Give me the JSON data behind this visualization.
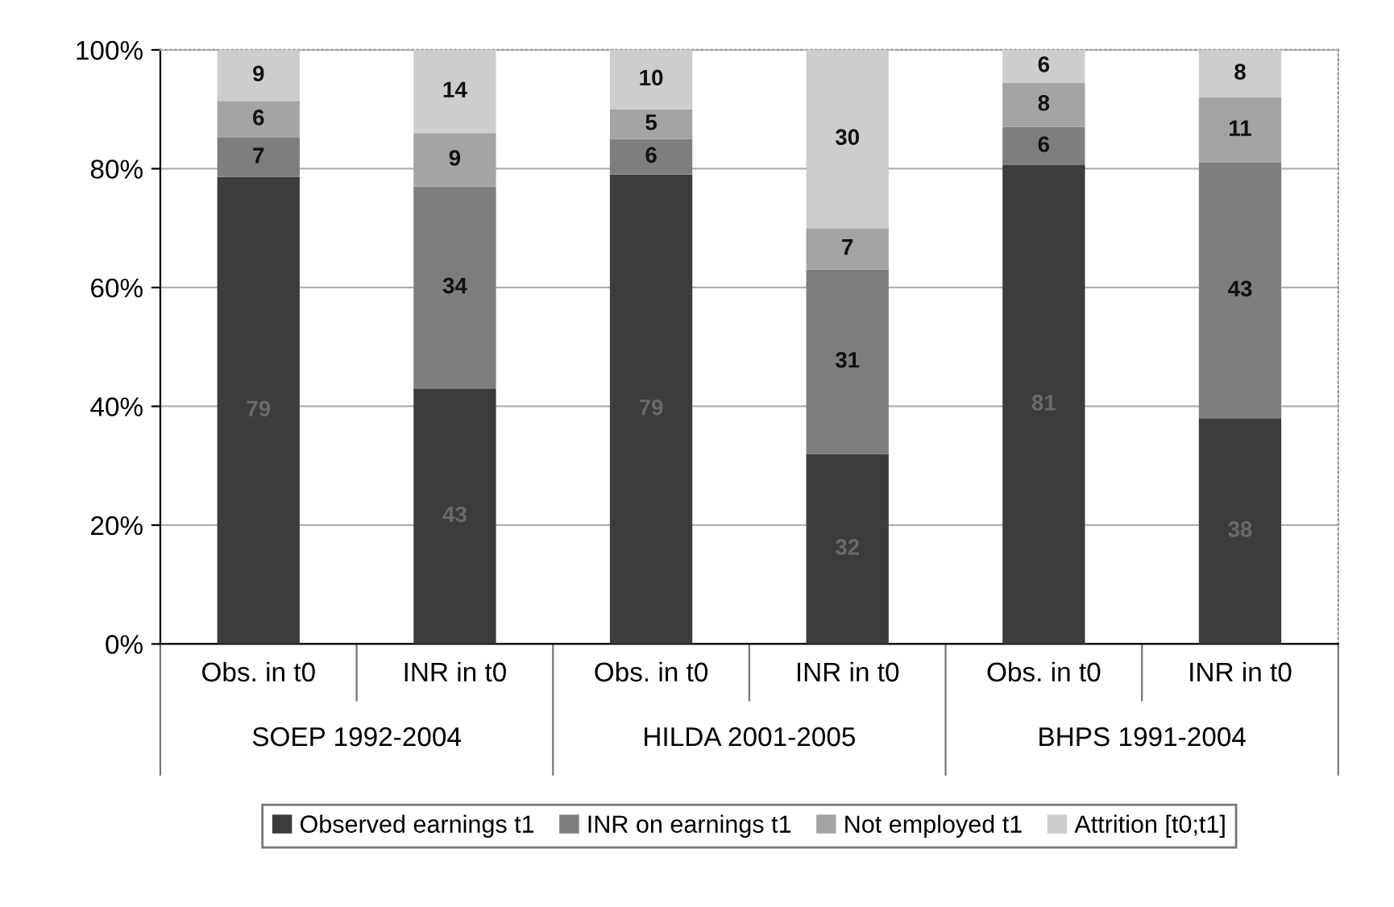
{
  "chart_data": {
    "type": "bar",
    "stacked": true,
    "categories": [
      "Obs. in t0",
      "INR in t0",
      "Obs. in t0",
      "INR in t0",
      "Obs. in t0",
      "INR in t0"
    ],
    "annotations": [
      "SOEP 1992-2004",
      "HILDA 2001-2005",
      "BHPS 1991-2004"
    ],
    "series": [
      {
        "name": "Observed earnings t1",
        "color": "#3c3c3c",
        "values": [
          78.6,
          43,
          79,
          32,
          80.6,
          38
        ],
        "value_labels": [
          "79",
          "43",
          "79",
          "32",
          "81",
          "38"
        ]
      },
      {
        "name": "INR on earnings t1",
        "color": "#7e7e7e",
        "values": [
          6.6,
          34,
          6,
          31,
          6.4,
          43
        ],
        "value_labels": [
          "7",
          "34",
          "6",
          "31",
          "6",
          "43"
        ]
      },
      {
        "name": "Not employed t1",
        "color": "#a4a4a4",
        "values": [
          6.2,
          9,
          5,
          7,
          7.5,
          11
        ],
        "value_labels": [
          "6",
          "9",
          "5",
          "7",
          "8",
          "11"
        ]
      },
      {
        "name": "Attrition [t0;t1]",
        "color": "#cdcdcd",
        "values": [
          8.6,
          14,
          10,
          30,
          5.5,
          8
        ],
        "value_labels": [
          "9",
          "14",
          "10",
          "30",
          "6",
          "8"
        ]
      }
    ],
    "ylim": [
      0,
      100
    ],
    "yticks": [
      {
        "value": 0,
        "label": "0%"
      },
      {
        "value": 20,
        "label": "20%"
      },
      {
        "value": 40,
        "label": "40%"
      },
      {
        "value": 60,
        "label": "60%"
      },
      {
        "value": 80,
        "label": "80%"
      },
      {
        "value": 100,
        "label": "100%"
      }
    ],
    "grid": "y",
    "legend": "bottom"
  }
}
